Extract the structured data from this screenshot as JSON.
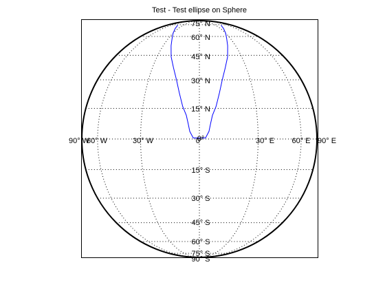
{
  "figure": {
    "title": "Test - Test ellipse on Sphere"
  },
  "chart_data": {
    "type": "map",
    "projection": "orthographic (globe view)",
    "grid": true,
    "grid_style": "dotted",
    "frame_box": true,
    "meridians": [
      -90,
      -60,
      -30,
      0,
      30,
      60,
      90
    ],
    "parallels": [
      -75,
      -60,
      -45,
      -30,
      -15,
      0,
      15,
      30,
      45,
      60,
      75
    ],
    "longitude_labels": [
      "90° W",
      "60° W",
      "30° W",
      "0°",
      "30° E",
      "60° E",
      "90° E"
    ],
    "latitude_labels": [
      "75° N",
      "60° N",
      "45° N",
      "30° N",
      "15° N",
      "0°",
      "15° S",
      "30° S",
      "45° S",
      "60° S",
      "75° S",
      "90° S"
    ],
    "series": [
      {
        "line_color": "#0000ff",
        "points": [
          {
            "lon": -3,
            "lat": 0.5
          },
          {
            "lon": -4.7,
            "lat": 3.7
          },
          {
            "lon": -5.5,
            "lat": 7.4
          },
          {
            "lon": -6.5,
            "lat": 11.5
          },
          {
            "lon": -8.5,
            "lat": 16
          },
          {
            "lon": -10.7,
            "lat": 23
          },
          {
            "lon": -13,
            "lat": 30
          },
          {
            "lon": -16,
            "lat": 37
          },
          {
            "lon": -19.5,
            "lat": 44
          },
          {
            "lon": -23,
            "lat": 52
          },
          {
            "lon": -26,
            "lat": 58
          },
          {
            "lon": -30,
            "lat": 63.5
          },
          {
            "lon": -35,
            "lat": 69
          },
          {
            "lon": -42,
            "lat": 74
          }
        ],
        "points_right": [
          {
            "lon": 3,
            "lat": 0.5
          },
          {
            "lon": 4.7,
            "lat": 3.7
          },
          {
            "lon": 5.5,
            "lat": 7.4
          },
          {
            "lon": 6.5,
            "lat": 11.5
          },
          {
            "lon": 8.5,
            "lat": 16
          },
          {
            "lon": 10.7,
            "lat": 23
          },
          {
            "lon": 13,
            "lat": 30
          },
          {
            "lon": 16,
            "lat": 37
          },
          {
            "lon": 19.5,
            "lat": 44
          },
          {
            "lon": 23,
            "lat": 52
          },
          {
            "lon": 26,
            "lat": 58
          },
          {
            "lon": 30,
            "lat": 63.5
          },
          {
            "lon": 35,
            "lat": 69
          },
          {
            "lon": 42,
            "lat": 74
          }
        ]
      }
    ]
  }
}
